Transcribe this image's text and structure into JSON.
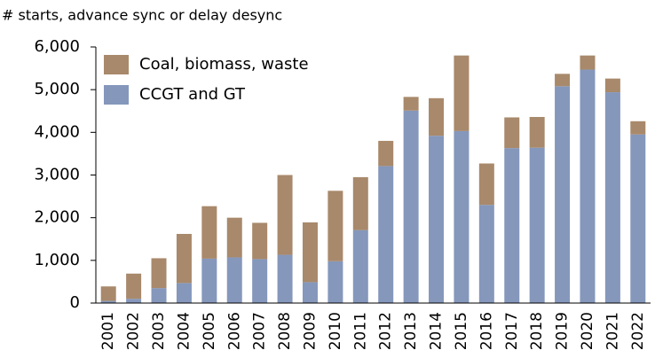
{
  "chart_data": {
    "type": "stacked_bar",
    "title": "# starts, advance sync or delay desync",
    "categories": [
      "2001",
      "2002",
      "2003",
      "2004",
      "2005",
      "2006",
      "2007",
      "2008",
      "2009",
      "2010",
      "2011",
      "2012",
      "2013",
      "2014",
      "2015",
      "2016",
      "2017",
      "2018",
      "2019",
      "2020",
      "2021",
      "2022"
    ],
    "series": [
      {
        "name": "CCGT and GT",
        "color": "#8597bb",
        "values": [
          50,
          100,
          350,
          470,
          1040,
          1070,
          1030,
          1130,
          490,
          980,
          1710,
          3210,
          4510,
          3920,
          4030,
          2300,
          3630,
          3640,
          5080,
          5470,
          4940,
          3950
        ]
      },
      {
        "name": "Coal, biomass, waste",
        "color": "#a8896b",
        "values": [
          340,
          590,
          700,
          1150,
          1230,
          930,
          850,
          1870,
          1400,
          1650,
          1240,
          590,
          320,
          880,
          1770,
          970,
          720,
          720,
          290,
          330,
          320,
          310
        ]
      }
    ],
    "ylim": [
      0,
      6000
    ],
    "yticks": [
      0,
      {
        "value": 1000,
        "label": "1,000"
      },
      {
        "value": 2000,
        "label": "2,000"
      },
      {
        "value": 3000,
        "label": "3,000"
      },
      {
        "value": 4000,
        "label": "4,000"
      },
      {
        "value": 5000,
        "label": "5,000"
      },
      {
        "value": 6000,
        "label": "6,000"
      }
    ],
    "legend": "upper-left"
  }
}
